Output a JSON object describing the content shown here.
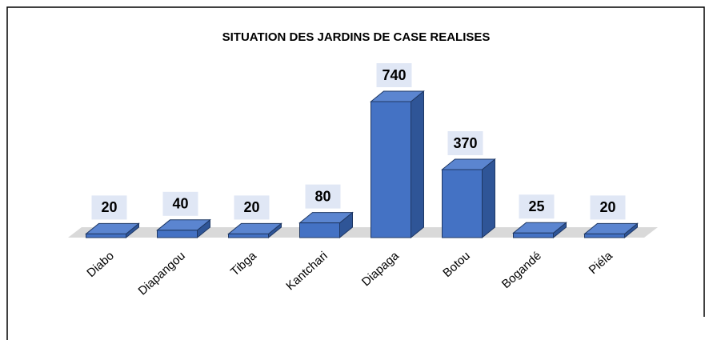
{
  "chart_data": {
    "type": "bar3d",
    "title": "SITUATION DES JARDINS DE CASE REALISES",
    "categories": [
      "Diabo",
      "Diapangou",
      "Tibga",
      "Kantchari",
      "Diapaga",
      "Botou",
      "Bogandé",
      "Piéla"
    ],
    "values": [
      20,
      40,
      20,
      80,
      740,
      370,
      25,
      20
    ],
    "color": "#4472c4"
  }
}
